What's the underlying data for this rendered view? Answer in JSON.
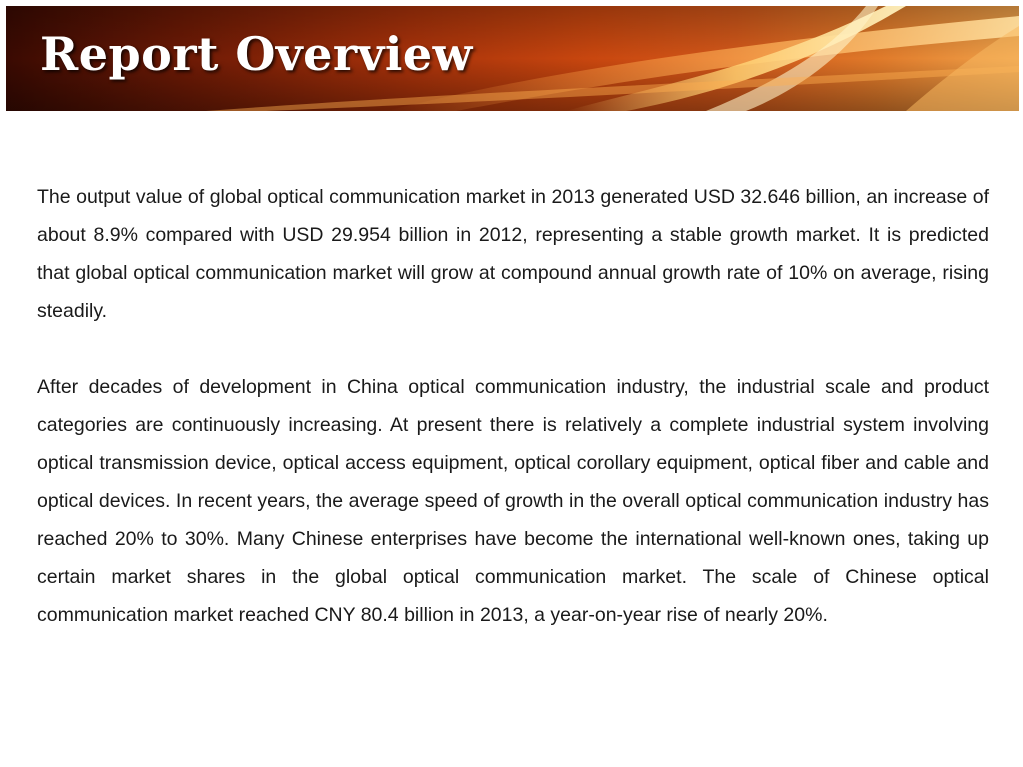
{
  "slide": {
    "title": "Report Overview",
    "paragraphs": [
      "The output value of global optical communication market in 2013 generated USD 32.646 billion, an increase of about 8.9% compared with USD 29.954 billion in 2012, representing a stable growth market. It is predicted that global optical communication market will grow at compound annual growth rate of 10% on average, rising steadily.",
      "After decades of development in China optical communication industry, the industrial scale and product categories are continuously increasing. At present there is relatively a complete industrial system involving optical transmission device, optical access equipment, optical corollary equipment, optical fiber and cable and optical devices. In recent years, the average speed of growth in the overall optical communication industry has reached 20% to 30%. Many Chinese enterprises have become the international well-known ones, taking up certain market shares in the global optical communication market. The scale of Chinese optical communication market reached CNY 80.4 billion in 2013, a year-on-year rise of nearly 20%."
    ]
  },
  "colors": {
    "banner_dark": "#3a0a02",
    "banner_mid": "#c9470f",
    "banner_light": "#f0a24a",
    "title_text": "#ffffff",
    "body_text": "#1a1a1a"
  }
}
